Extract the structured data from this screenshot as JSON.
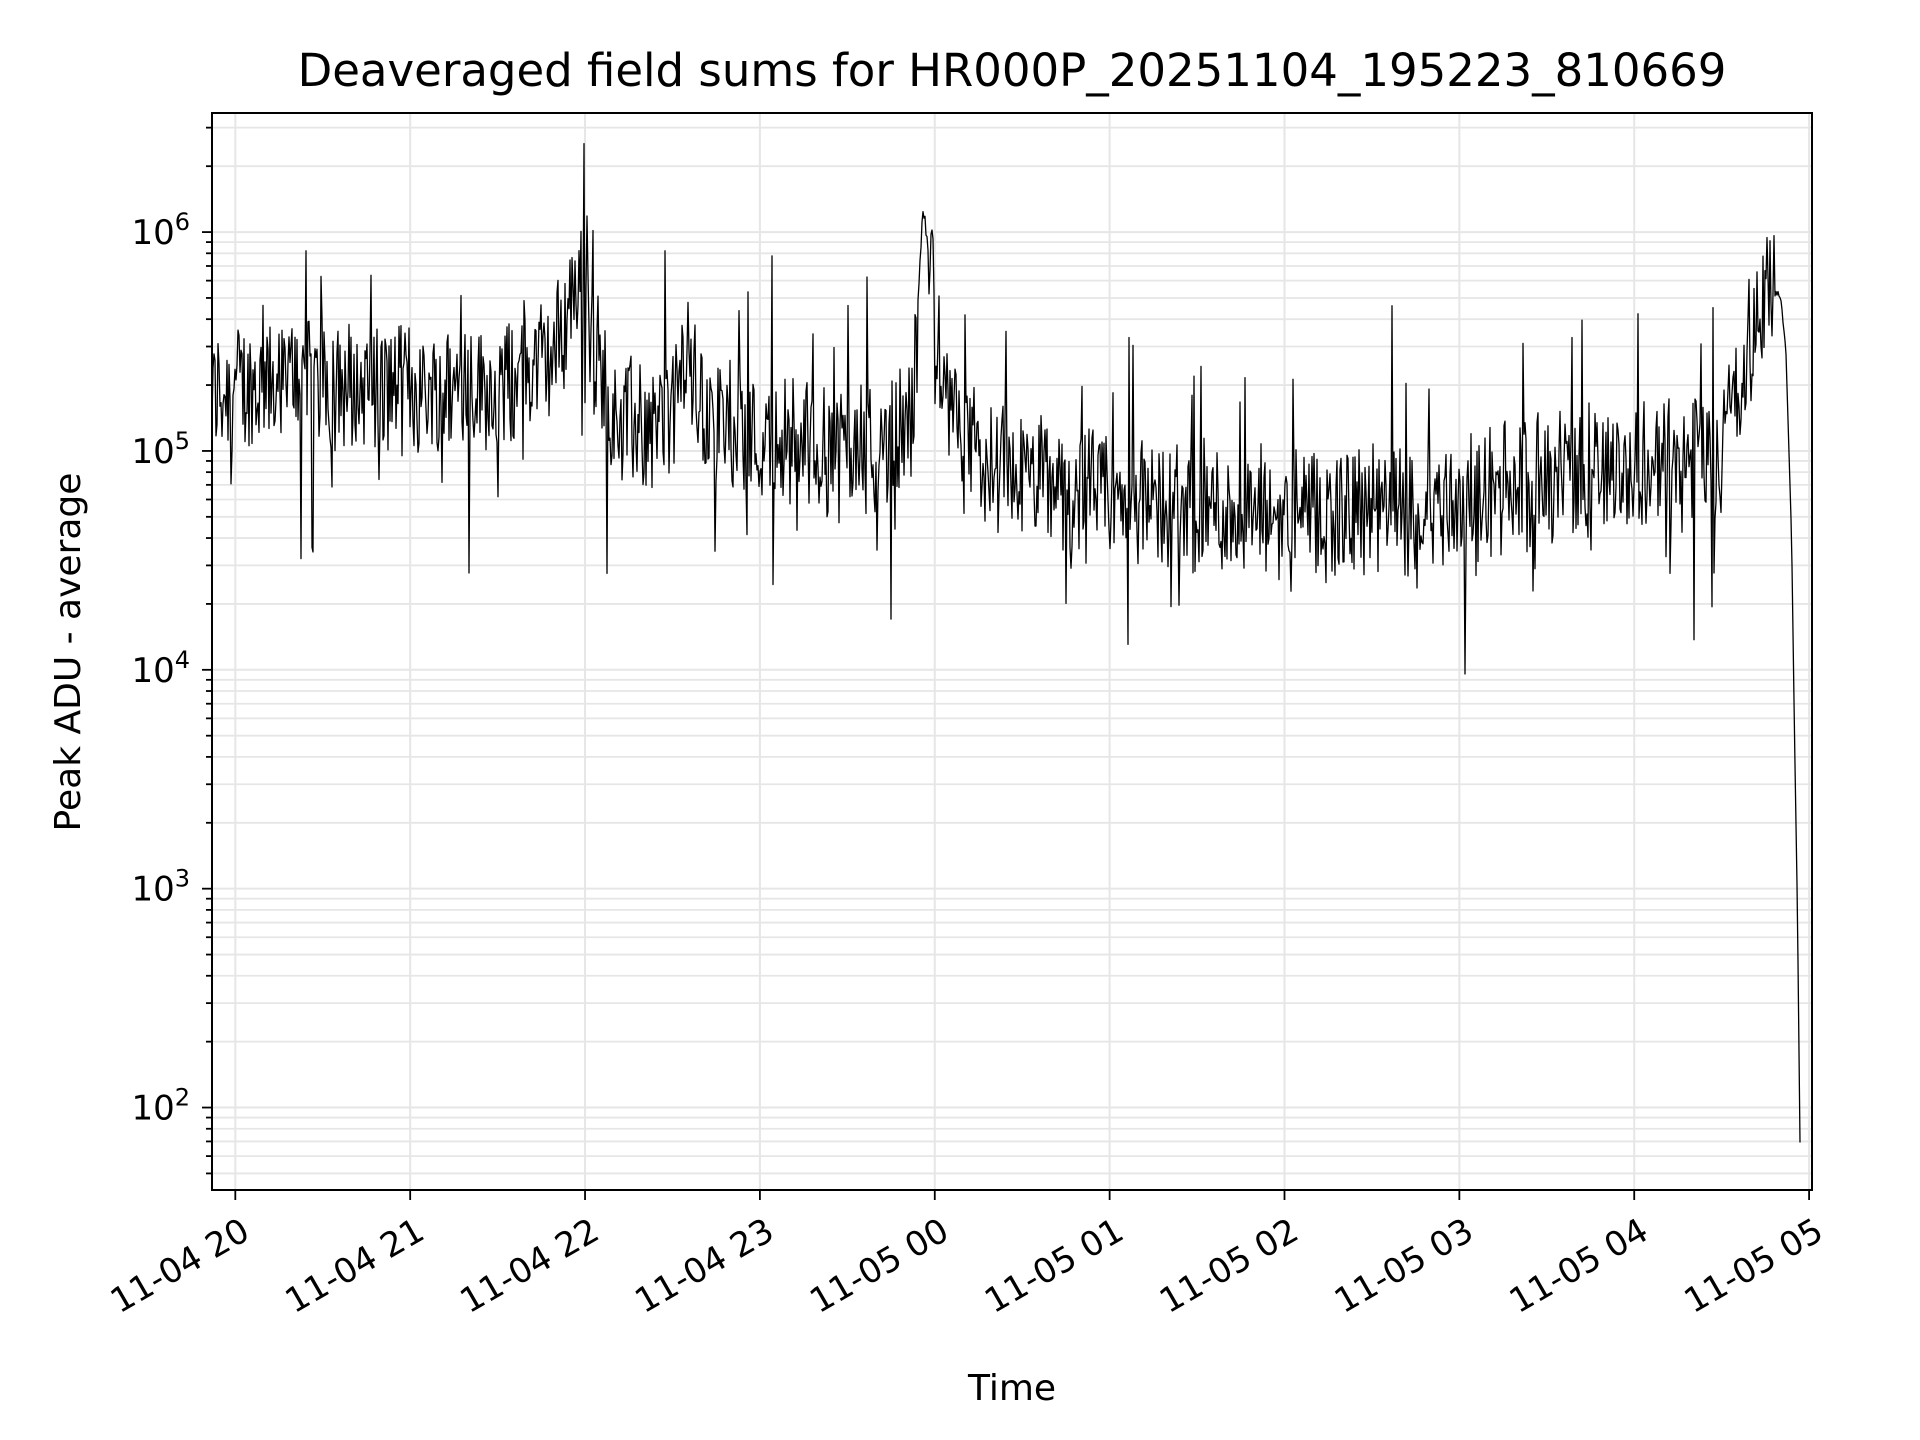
{
  "chart_data": {
    "type": "line",
    "title": "Deaveraged field sums for HR000P_20251104_195223_810669",
    "xlabel": "Time",
    "ylabel": "Peak ADU - average",
    "y_scale": "log",
    "ylim": [
      42,
      3500000
    ],
    "xlim": [
      "2025-11-04 19:52",
      "2025-11-05 05:01"
    ],
    "grid": true,
    "line_color": "#000000",
    "grid_color": "#e6e6e6",
    "x_ticks": [
      "11-04 20",
      "11-04 21",
      "11-04 22",
      "11-04 23",
      "11-05 00",
      "11-05 01",
      "11-05 02",
      "11-05 03",
      "11-05 04",
      "11-05 05"
    ],
    "y_ticks": [
      {
        "value": 100,
        "base": "10",
        "exp": "2"
      },
      {
        "value": 1000,
        "base": "10",
        "exp": "3"
      },
      {
        "value": 10000,
        "base": "10",
        "exp": "4"
      },
      {
        "value": 100000,
        "base": "10",
        "exp": "5"
      },
      {
        "value": 1000000,
        "base": "10",
        "exp": "6"
      }
    ],
    "series": [
      {
        "x": [
          "2025-11-04 19:52",
          "2025-11-04 20:00",
          "2025-11-04 20:10",
          "2025-11-04 20:20",
          "2025-11-04 20:30",
          "2025-11-04 20:40",
          "2025-11-04 20:50",
          "2025-11-04 21:00",
          "2025-11-04 21:10",
          "2025-11-04 21:20",
          "2025-11-04 21:30",
          "2025-11-04 21:40",
          "2025-11-04 21:50",
          "2025-11-04 21:57",
          "2025-11-04 22:05",
          "2025-11-04 22:10",
          "2025-11-04 22:20",
          "2025-11-04 22:30",
          "2025-11-04 22:35",
          "2025-11-04 22:40",
          "2025-11-04 22:50",
          "2025-11-04 23:00",
          "2025-11-04 23:10",
          "2025-11-04 23:20",
          "2025-11-04 23:30",
          "2025-11-04 23:40",
          "2025-11-04 23:52",
          "2025-11-04 23:56",
          "2025-11-05 00:05",
          "2025-11-05 00:15",
          "2025-11-05 00:30",
          "2025-11-05 00:45",
          "2025-11-05 01:00",
          "2025-11-05 01:15",
          "2025-11-05 01:30",
          "2025-11-05 01:45",
          "2025-11-05 02:00",
          "2025-11-05 02:15",
          "2025-11-05 02:30",
          "2025-11-05 02:45",
          "2025-11-05 03:00",
          "2025-11-05 03:15",
          "2025-11-05 03:30",
          "2025-11-05 03:45",
          "2025-11-05 04:00",
          "2025-11-05 04:15",
          "2025-11-05 04:30",
          "2025-11-05 04:35",
          "2025-11-05 04:40",
          "2025-11-05 04:45",
          "2025-11-05 04:48",
          "2025-11-05 04:50",
          "2025-11-05 04:52",
          "2025-11-05 04:54",
          "2025-11-05 04:55",
          "2025-11-05 04:56",
          "2025-11-05 04:57"
        ],
        "y": [
          180000,
          200000,
          190000,
          220000,
          210000,
          190000,
          200000,
          200000,
          180000,
          210000,
          190000,
          230000,
          280000,
          600000,
          250000,
          150000,
          130000,
          140000,
          300000,
          150000,
          130000,
          110000,
          115000,
          105000,
          100000,
          100000,
          130000,
          1300000,
          140000,
          90000,
          75000,
          70000,
          62000,
          58000,
          55000,
          52000,
          50000,
          50000,
          52000,
          55000,
          60000,
          68000,
          75000,
          80000,
          85000,
          90000,
          100000,
          200000,
          350000,
          500000,
          550000,
          500000,
          300000,
          40000,
          5000,
          800,
          50
        ]
      }
    ]
  }
}
